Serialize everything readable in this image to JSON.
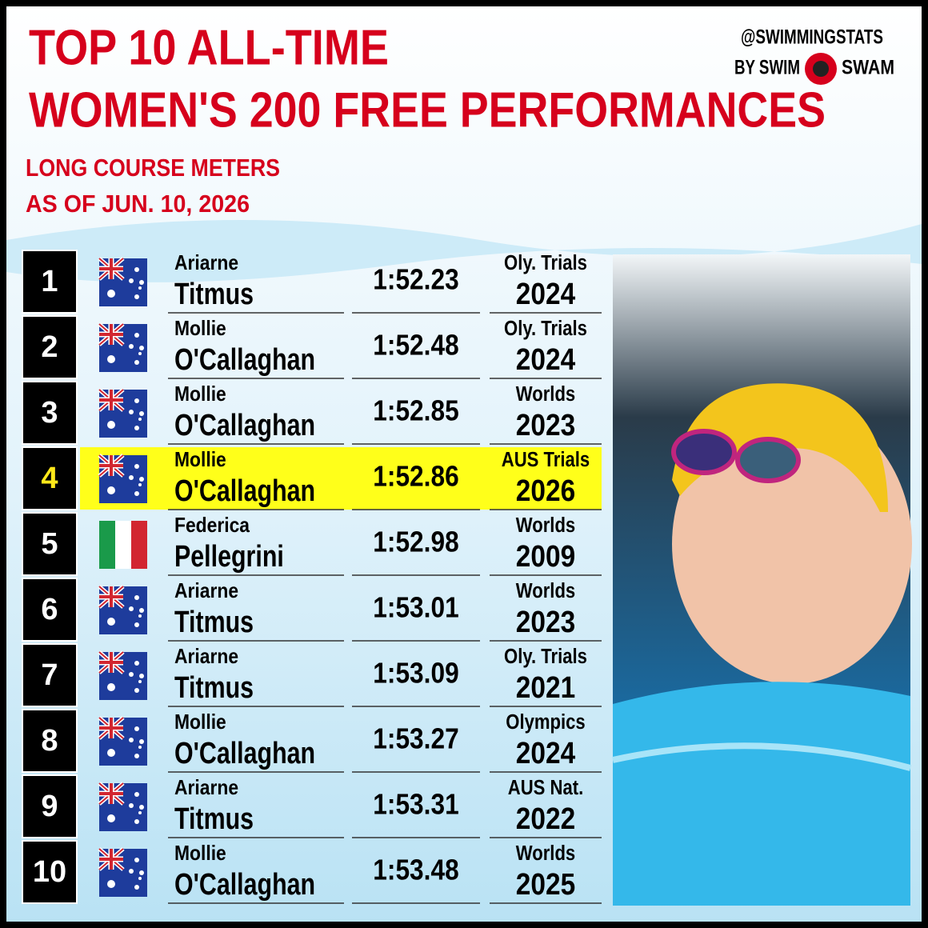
{
  "header": {
    "title_lines": [
      "TOP 10 ALL-TIME",
      "WOMEN'S 200 FREE PERFORMANCES"
    ],
    "subtitle_lines": [
      "LONG COURSE METERS",
      "AS OF JUN. 10, 2026"
    ],
    "brand_handle": "@SWIMMINGSTATS",
    "brand_by": "BY SWIM",
    "brand_name": "SWAM"
  },
  "table": {
    "highlight_row": 3,
    "rows": [
      {
        "rank": "1",
        "first": "Ariarne",
        "last": "Titmus",
        "time": "1:52.23",
        "meet": "Oly. Trials",
        "year": "2024"
      },
      {
        "rank": "2",
        "first": "Mollie",
        "last": "O'Callaghan",
        "time": "1:52.48",
        "meet": "Oly. Trials",
        "year": "2024"
      },
      {
        "rank": "3",
        "first": "Mollie",
        "last": "O'Callaghan",
        "time": "1:52.85",
        "meet": "Worlds",
        "year": "2023"
      },
      {
        "rank": "4",
        "first": "Mollie",
        "last": "O'Callaghan",
        "time": "1:52.86",
        "meet": "AUS Trials",
        "year": "2026"
      },
      {
        "rank": "5",
        "first": "Federica",
        "last": "Pellegrini",
        "time": "1:52.98",
        "meet": "Worlds",
        "year": "2009"
      },
      {
        "rank": "6",
        "first": "Ariarne",
        "last": "Titmus",
        "time": "1:53.01",
        "meet": "Worlds",
        "year": "2023"
      },
      {
        "rank": "7",
        "first": "Ariarne",
        "last": "Titmus",
        "time": "1:53.09",
        "meet": "Oly. Trials",
        "year": "2021"
      },
      {
        "rank": "8",
        "first": "Mollie",
        "last": "O'Callaghan",
        "time": "1:53.27",
        "meet": "Olympics",
        "year": "2024"
      },
      {
        "rank": "9",
        "first": "Ariarne",
        "last": "Titmus",
        "time": "1:53.31",
        "meet": "AUS Nat.",
        "year": "2022"
      },
      {
        "rank": "10",
        "first": "Mollie",
        "last": "O'Callaghan",
        "time": "1:53.48",
        "meet": "Worlds",
        "year": "2025"
      }
    ]
  }
}
